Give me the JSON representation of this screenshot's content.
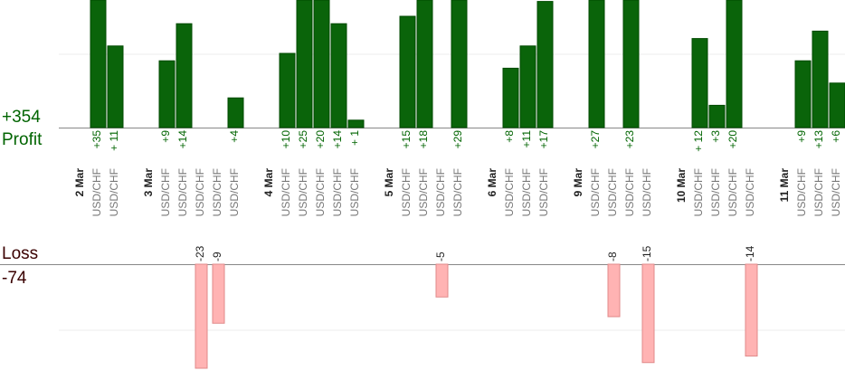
{
  "summary": {
    "profit_label": "Profit",
    "profit_total": "+354",
    "loss_label": "Loss",
    "loss_total": "-74"
  },
  "days": [
    {
      "date": "2 Mar",
      "trades": [
        {
          "symbol": "USD/CHF",
          "value": 35,
          "label": "+35"
        },
        {
          "symbol": "USD/CHF",
          "value": 11,
          "label": "+ 11"
        }
      ]
    },
    {
      "date": "3 Mar",
      "trades": [
        {
          "symbol": "USD/CHF",
          "value": 9,
          "label": "+9"
        },
        {
          "symbol": "USD/CHF",
          "value": 14,
          "label": "+14"
        },
        {
          "symbol": "USD/CHF",
          "value": -23,
          "label": "-23"
        },
        {
          "symbol": "USD/CHF",
          "value": -9,
          "label": "-9"
        },
        {
          "symbol": "USD/CHF",
          "value": 4,
          "label": "+4"
        }
      ]
    },
    {
      "date": "4 Mar",
      "trades": [
        {
          "symbol": "USD/CHF",
          "value": 10,
          "label": "+10"
        },
        {
          "symbol": "USD/CHF",
          "value": 25,
          "label": "+25"
        },
        {
          "symbol": "USD/CHF",
          "value": 20,
          "label": "+20"
        },
        {
          "symbol": "USD/CHF",
          "value": 14,
          "label": "+14"
        },
        {
          "symbol": "USD/CHF",
          "value": 1,
          "label": "+ 1"
        }
      ]
    },
    {
      "date": "5 Mar",
      "trades": [
        {
          "symbol": "USD/CHF",
          "value": 15,
          "label": "+15"
        },
        {
          "symbol": "USD/CHF",
          "value": 18,
          "label": "+18"
        },
        {
          "symbol": "USD/CHF",
          "value": -5,
          "label": "-5"
        },
        {
          "symbol": "USD/CHF",
          "value": 29,
          "label": "+29"
        }
      ]
    },
    {
      "date": "6 Mar",
      "trades": [
        {
          "symbol": "USD/CHF",
          "value": 8,
          "label": "+8"
        },
        {
          "symbol": "USD/CHF",
          "value": 11,
          "label": "+11"
        },
        {
          "symbol": "USD/CHF",
          "value": 17,
          "label": "+17"
        }
      ]
    },
    {
      "date": "9 Mar",
      "trades": [
        {
          "symbol": "USD/CHF",
          "value": 27,
          "label": "+27"
        },
        {
          "symbol": "USD/CHF",
          "value": -8,
          "label": "-8"
        },
        {
          "symbol": "USD/CHF",
          "value": 23,
          "label": "+23"
        },
        {
          "symbol": "USD/CHF",
          "value": -15,
          "label": "-15"
        }
      ]
    },
    {
      "date": "10 Mar",
      "trades": [
        {
          "symbol": "USD/CHF",
          "value": 12,
          "label": "+ 12"
        },
        {
          "symbol": "USD/CHF",
          "value": 3,
          "label": "+3"
        },
        {
          "symbol": "USD/CHF",
          "value": 20,
          "label": "+20"
        },
        {
          "symbol": "USD/CHF",
          "value": -14,
          "label": "-14"
        }
      ]
    },
    {
      "date": "11 Mar",
      "trades": [
        {
          "symbol": "USD/CHF",
          "value": 9,
          "label": "+9"
        },
        {
          "symbol": "USD/CHF",
          "value": 13,
          "label": "+13"
        },
        {
          "symbol": "USD/CHF",
          "value": 6,
          "label": "+6"
        }
      ]
    }
  ]
}
